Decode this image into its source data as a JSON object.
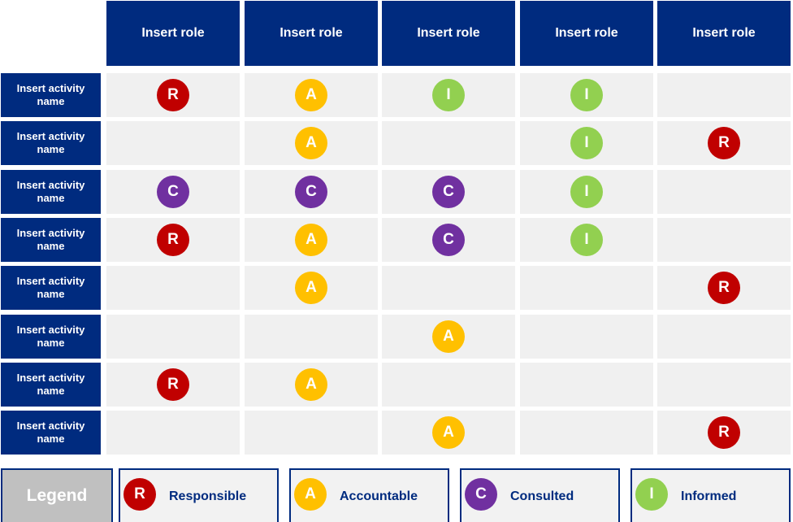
{
  "roles": [
    "Insert role",
    "Insert role",
    "Insert role",
    "Insert role",
    "Insert role"
  ],
  "activities": [
    {
      "name": "Insert activity name",
      "cells": [
        "R",
        "A",
        "I",
        "I",
        null
      ]
    },
    {
      "name": "Insert activity name",
      "cells": [
        null,
        "A",
        null,
        "I",
        "R"
      ]
    },
    {
      "name": "Insert activity name",
      "cells": [
        "C",
        "C",
        "C",
        "I",
        null
      ]
    },
    {
      "name": "Insert activity name",
      "cells": [
        "R",
        "A",
        "C",
        "I",
        null
      ]
    },
    {
      "name": "Insert activity name",
      "cells": [
        null,
        "A",
        null,
        null,
        "R"
      ]
    },
    {
      "name": "Insert activity name",
      "cells": [
        null,
        null,
        "A",
        null,
        null
      ]
    },
    {
      "name": "Insert activity name",
      "cells": [
        "R",
        "A",
        null,
        null,
        null
      ]
    },
    {
      "name": "Insert activity name",
      "cells": [
        null,
        null,
        "A",
        null,
        "R"
      ]
    }
  ],
  "legend": {
    "title": "Legend",
    "items": [
      {
        "letter": "R",
        "label": "Responsible",
        "color": "#c00000"
      },
      {
        "letter": "A",
        "label": "Accountable",
        "color": "#ffc000"
      },
      {
        "letter": "C",
        "label": "Consulted",
        "color": "#7030a0"
      },
      {
        "letter": "I",
        "label": "Informed",
        "color": "#92d050"
      }
    ]
  }
}
